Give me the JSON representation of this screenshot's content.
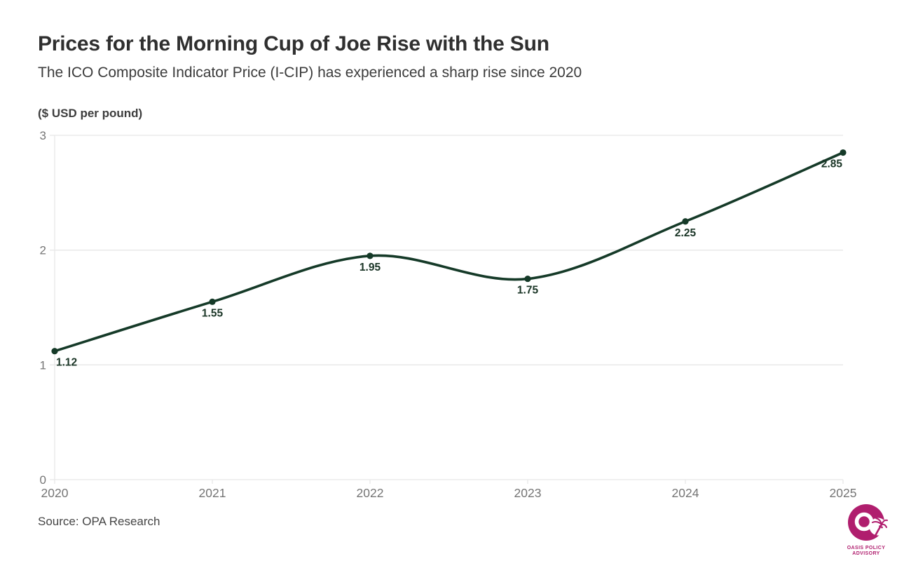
{
  "header": {
    "title": "Prices for the Morning Cup of Joe Rise with the Sun",
    "subtitle": "The ICO Composite Indicator Price (I-CIP) has experienced a sharp rise since 2020"
  },
  "chart_data": {
    "type": "line",
    "title": "Prices for the Morning Cup of Joe Rise with the Sun",
    "subtitle": "The ICO Composite Indicator Price (I-CIP) has experienced a sharp rise since 2020",
    "unit_label": "($ USD per pound)",
    "x": [
      2020,
      2021,
      2022,
      2023,
      2024,
      2025
    ],
    "values": [
      1.12,
      1.55,
      1.95,
      1.75,
      2.25,
      2.85
    ],
    "point_labels": [
      "1.12",
      "1.55",
      "1.95",
      "1.75",
      "2.25",
      "2.85"
    ],
    "xtick_labels": [
      "2020",
      "2021",
      "2022",
      "2023",
      "2024",
      "2025"
    ],
    "yticks": [
      0,
      1,
      2,
      3
    ],
    "ylim": [
      0,
      3
    ],
    "grid": "horizontal",
    "legend": "none",
    "line_color": "#153a28",
    "point_color": "#153a28",
    "data_label_color": "#1a3526",
    "axis_text_color": "#757575",
    "grid_color": "#e7e7e7"
  },
  "footer": {
    "source": "Source: OPA Research",
    "logo": {
      "line1": "OASIS POLICY",
      "line2": "ADVISORY",
      "color": "#b01e6e"
    }
  }
}
